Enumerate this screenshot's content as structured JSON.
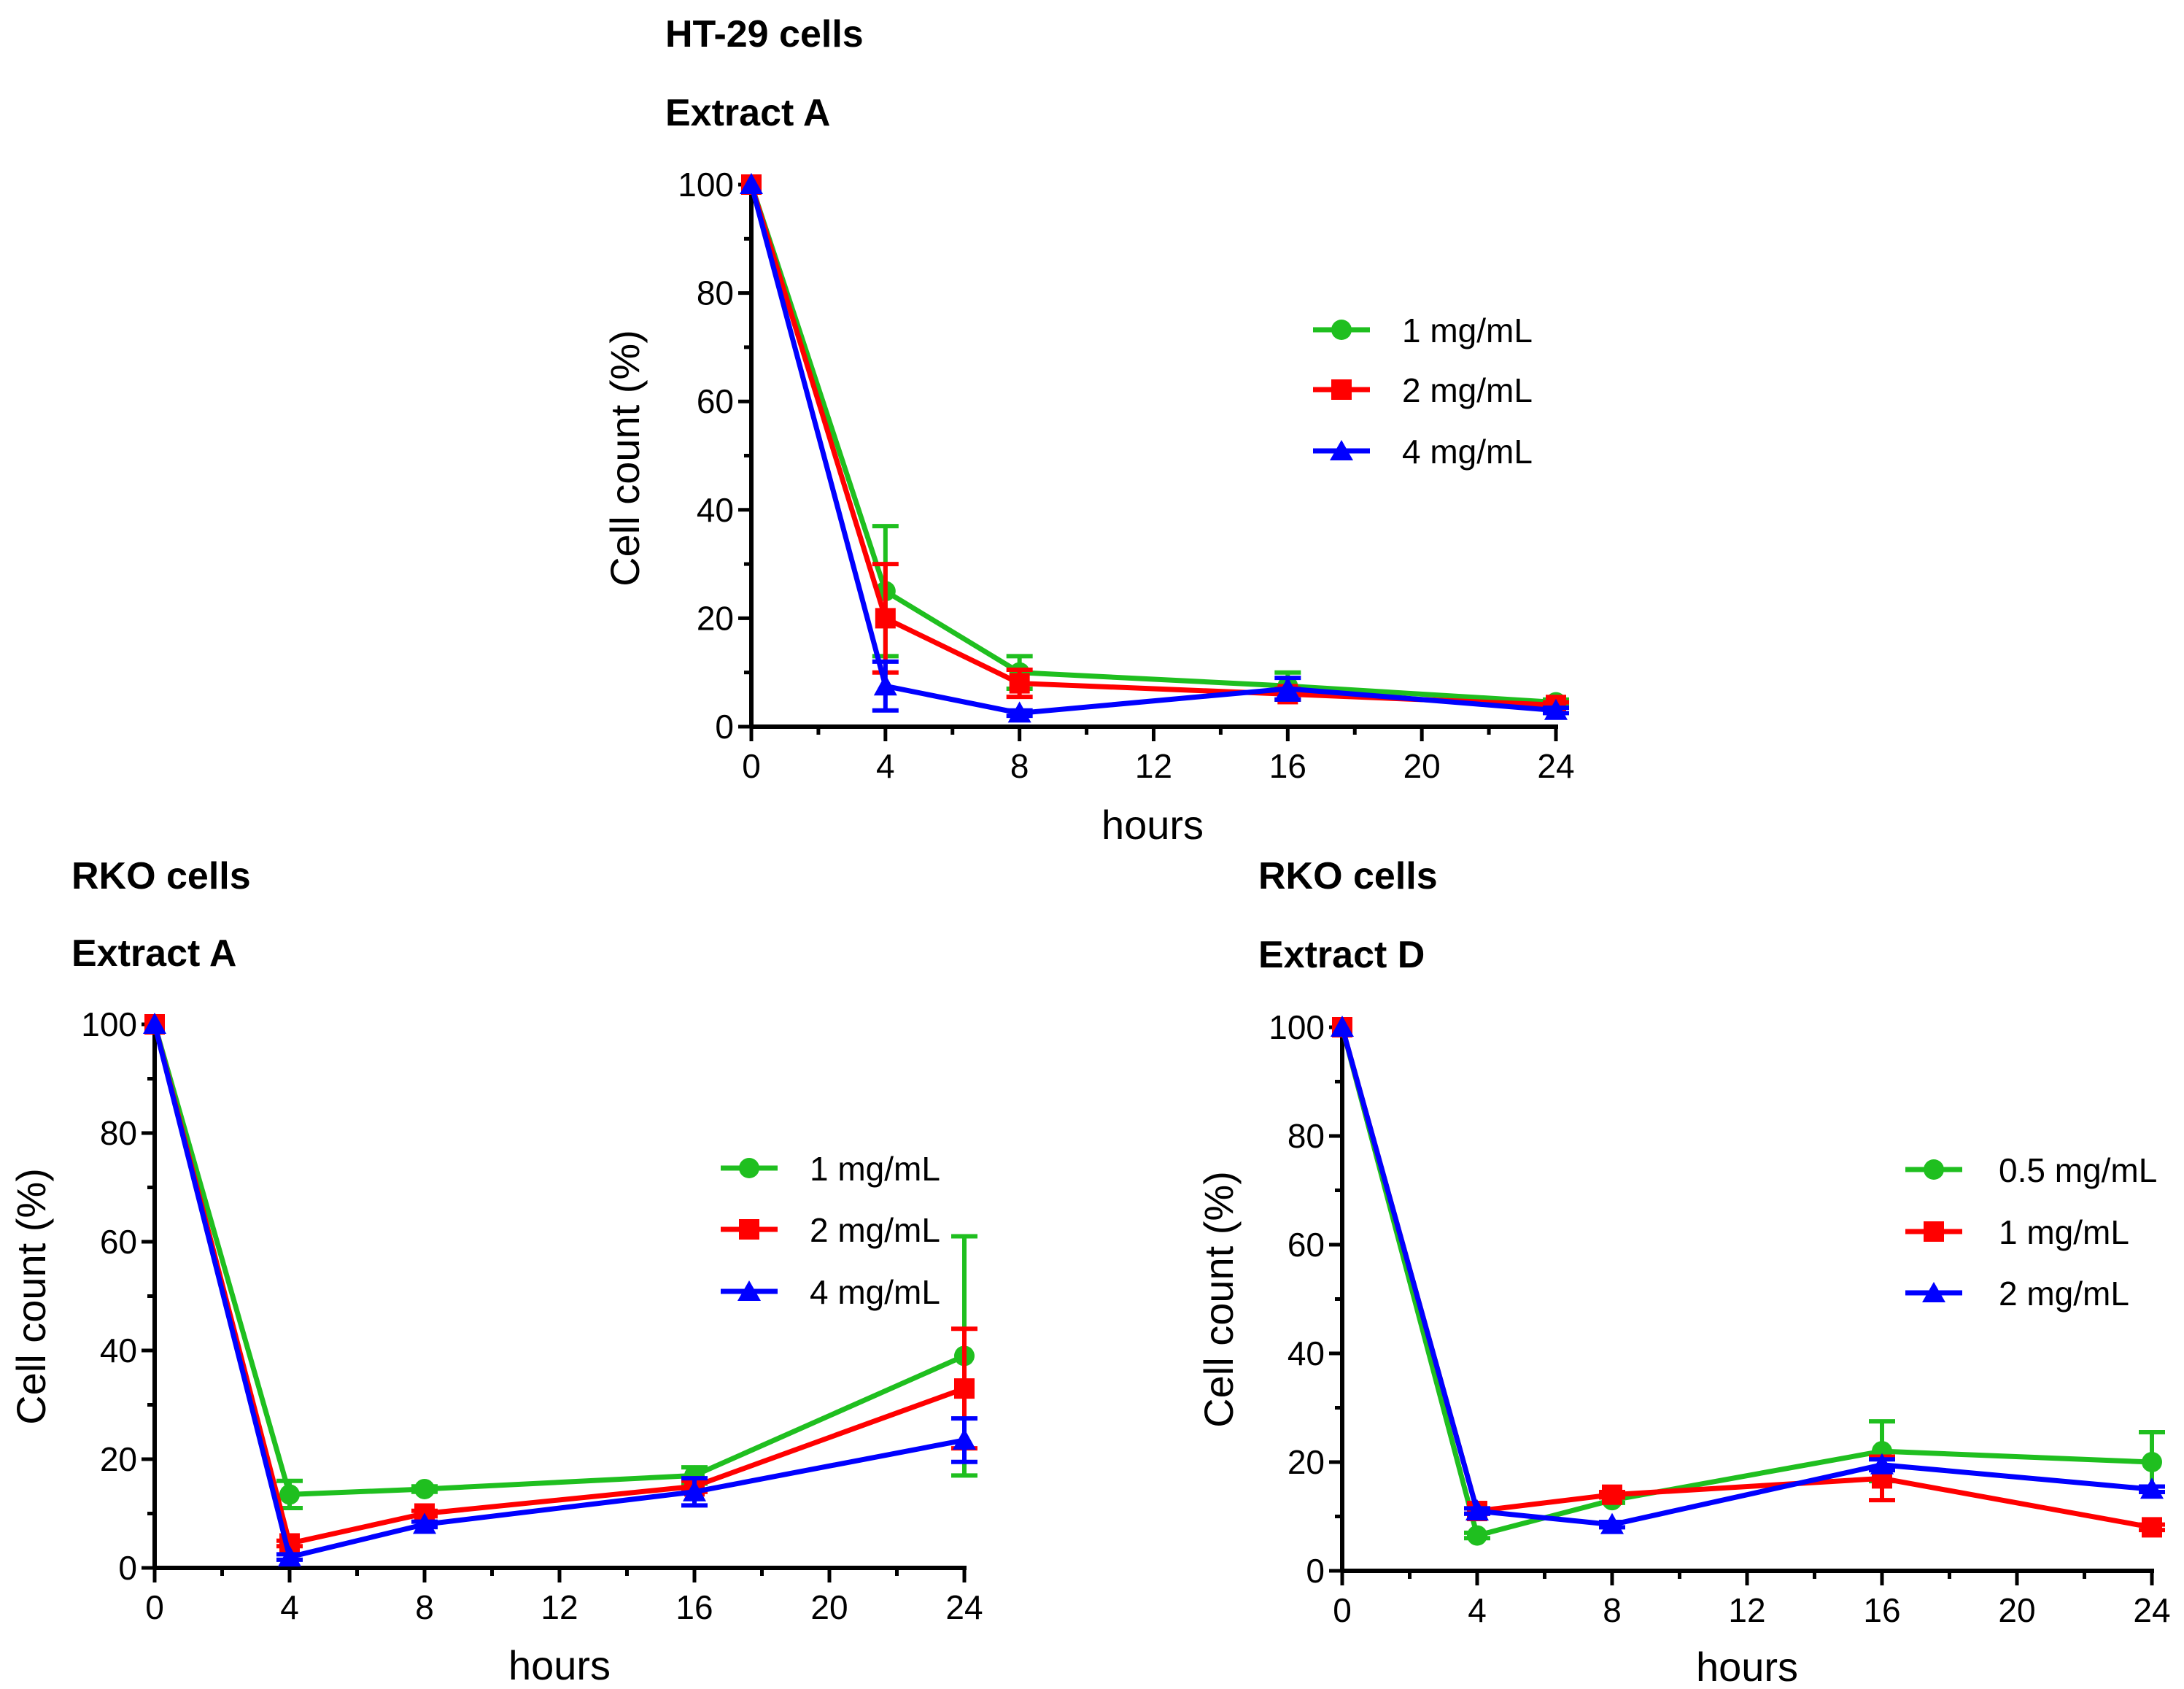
{
  "chart_data": [
    {
      "type": "line",
      "title": "HT-29 cells",
      "subtitle": "Extract A",
      "xlabel": "hours",
      "ylabel": "Cell count (%)",
      "xlim": [
        0,
        24
      ],
      "ylim": [
        0,
        100
      ],
      "xticks": [
        "0",
        "4",
        "8",
        "12",
        "16",
        "20",
        "24"
      ],
      "yticks": [
        "0",
        "20",
        "40",
        "60",
        "80",
        "100"
      ],
      "legend_position": "center-right",
      "x": [
        0,
        4,
        8,
        16,
        24
      ],
      "series": [
        {
          "name": "1 mg/mL",
          "color": "#1fbf1f",
          "marker": "circle",
          "values": [
            100,
            25,
            10,
            7.5,
            4.5
          ],
          "errors": [
            0,
            12,
            3,
            2.5,
            0.5
          ]
        },
        {
          "name": "2 mg/mL",
          "color": "#ff0000",
          "marker": "square",
          "values": [
            100,
            20,
            8,
            6,
            4
          ],
          "errors": [
            0,
            10,
            2.5,
            1,
            0.5
          ]
        },
        {
          "name": "4 mg/mL",
          "color": "#0000ff",
          "marker": "triangle",
          "values": [
            100,
            7.5,
            2.5,
            7,
            3
          ],
          "errors": [
            0,
            4.5,
            0.5,
            2,
            0.5
          ]
        }
      ]
    },
    {
      "type": "line",
      "title": "RKO cells",
      "subtitle": "Extract A",
      "xlabel": "hours",
      "ylabel": "Cell count (%)",
      "xlim": [
        0,
        24
      ],
      "ylim": [
        0,
        100
      ],
      "xticks": [
        "0",
        "4",
        "8",
        "12",
        "16",
        "20",
        "24"
      ],
      "yticks": [
        "0",
        "20",
        "40",
        "60",
        "80",
        "100"
      ],
      "legend_position": "center-right",
      "x": [
        0,
        4,
        8,
        16,
        24
      ],
      "series": [
        {
          "name": "1 mg/mL",
          "color": "#1fbf1f",
          "marker": "circle",
          "values": [
            100,
            13.5,
            14.5,
            17,
            39
          ],
          "errors": [
            0,
            2.5,
            0.5,
            1.5,
            22
          ]
        },
        {
          "name": "2 mg/mL",
          "color": "#ff0000",
          "marker": "square",
          "values": [
            100,
            4.5,
            10,
            15,
            33
          ],
          "errors": [
            0,
            0.5,
            0.5,
            1,
            11
          ]
        },
        {
          "name": "4 mg/mL",
          "color": "#0000ff",
          "marker": "triangle",
          "values": [
            100,
            2,
            8,
            14,
            23.5
          ],
          "errors": [
            0,
            0.5,
            0.5,
            2.5,
            4
          ]
        }
      ]
    },
    {
      "type": "line",
      "title": "RKO cells",
      "subtitle": "Extract D",
      "xlabel": "hours",
      "ylabel": "Cell count (%)",
      "xlim": [
        0,
        24
      ],
      "ylim": [
        0,
        100
      ],
      "xticks": [
        "0",
        "4",
        "8",
        "12",
        "16",
        "20",
        "24"
      ],
      "yticks": [
        "0",
        "20",
        "40",
        "60",
        "80",
        "100"
      ],
      "legend_position": "center-right",
      "x": [
        0,
        4,
        8,
        16,
        24
      ],
      "series": [
        {
          "name": "0.5 mg/mL",
          "color": "#1fbf1f",
          "marker": "circle",
          "values": [
            100,
            6.5,
            13,
            22,
            20
          ],
          "errors": [
            0,
            0.5,
            0.5,
            5.5,
            5.5
          ]
        },
        {
          "name": "1 mg/mL",
          "color": "#ff0000",
          "marker": "square",
          "values": [
            100,
            11,
            14,
            17,
            8
          ],
          "errors": [
            0,
            0.5,
            0.5,
            4,
            0.5
          ]
        },
        {
          "name": "2 mg/mL",
          "color": "#0000ff",
          "marker": "triangle",
          "values": [
            100,
            11,
            8.5,
            19.5,
            15
          ],
          "errors": [
            0,
            0.5,
            0.5,
            1,
            0.5
          ]
        }
      ]
    }
  ]
}
